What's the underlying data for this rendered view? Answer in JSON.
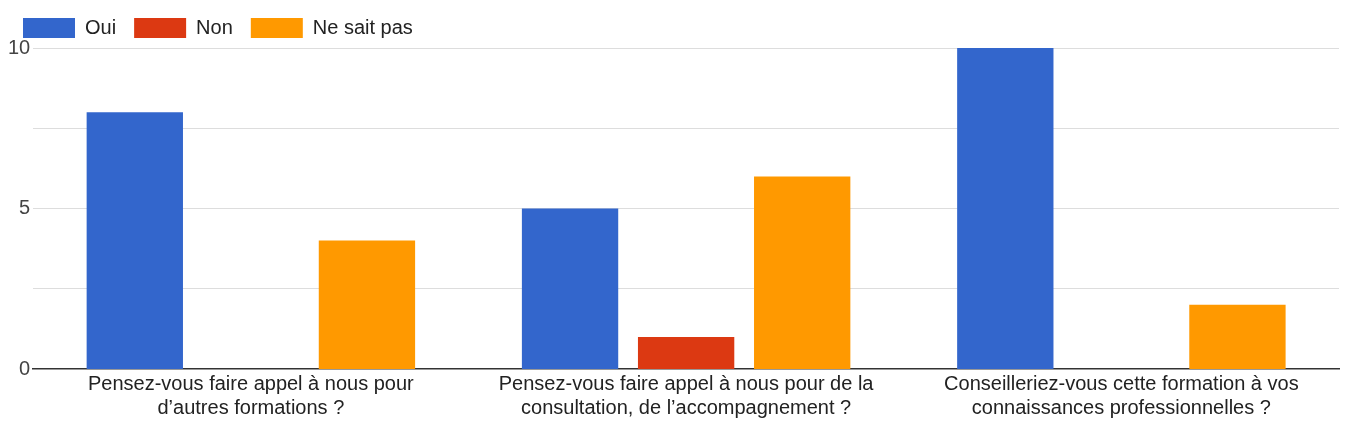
{
  "chart_data": {
    "type": "bar",
    "categories": [
      "Pensez-vous faire appel à nous pour d’autres formations ?",
      "Pensez-vous faire appel à nous pour de la consultation, de l’accompagnement ?",
      "Conseilleriez-vous cette formation à vos connaissances professionnelles ?"
    ],
    "series": [
      {
        "name": "Oui",
        "color": "#3366cc",
        "values": [
          8,
          5,
          10
        ]
      },
      {
        "name": "Non",
        "color": "#dc3912",
        "values": [
          0,
          1,
          0
        ]
      },
      {
        "name": "Ne sait pas",
        "color": "#ff9900",
        "values": [
          4,
          6,
          2
        ]
      }
    ],
    "ylim": [
      0,
      10
    ],
    "yticks": [
      0,
      {
        "value": 2.5,
        "label": null
      },
      5,
      {
        "value": 7.5,
        "label": null
      },
      10
    ],
    "grid": "y",
    "legend": "top left"
  }
}
